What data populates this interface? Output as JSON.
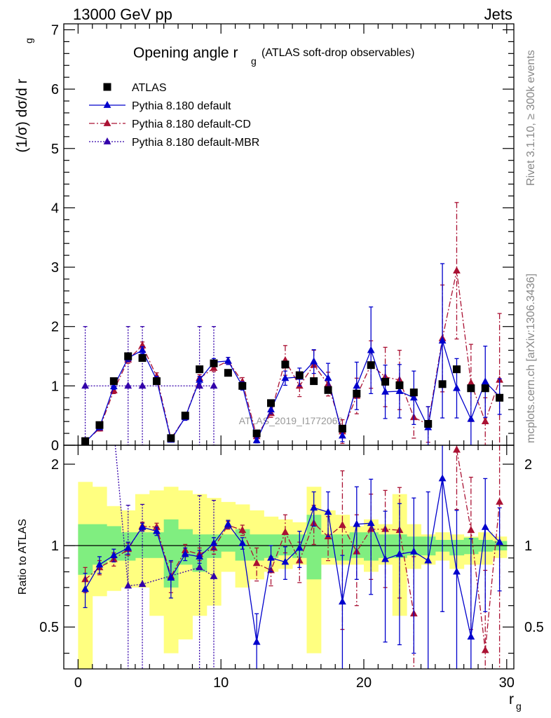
{
  "header": {
    "left": "13000 GeV pp",
    "right": "Jets",
    "side_top": "Rivet 3.1.10, ≥ 300k events",
    "side_bottom": "mcplots.cern.ch [arXiv:1306.3436]",
    "watermark": "ATLAS_2019_I1772062"
  },
  "chart_data": [
    {
      "type": "line",
      "title_main": "Opening angle r",
      "title_sub": "g",
      "title_extra": "(ATLAS soft-drop observables)",
      "ylabel": "(1/σ) dσ/d r",
      "ylabel_sub": "g",
      "xlim": [
        -1,
        30.5
      ],
      "ylim": [
        0,
        7.1
      ],
      "xticks": [
        0,
        10,
        20,
        30
      ],
      "yticks": [
        0,
        1,
        2,
        3,
        4,
        5,
        6,
        7
      ],
      "x": [
        0.5,
        1.5,
        2.5,
        3.5,
        4.5,
        5.5,
        6.5,
        7.5,
        8.5,
        9.5,
        10.5,
        11.5,
        12.5,
        13.5,
        14.5,
        15.5,
        16.5,
        17.5,
        18.5,
        19.5,
        20.5,
        21.5,
        22.5,
        23.5,
        24.5,
        25.5,
        26.5,
        27.5,
        28.5,
        29.5
      ],
      "legend_position": "top-left",
      "series": [
        {
          "name": "ATLAS",
          "color": "#000000",
          "marker": "square",
          "line": "none",
          "values": [
            0.07,
            0.34,
            1.08,
            1.5,
            1.47,
            1.08,
            0.12,
            0.5,
            1.28,
            1.38,
            1.22,
            1.0,
            0.2,
            0.71,
            1.36,
            1.18,
            1.08,
            0.93,
            0.28,
            0.87,
            1.35,
            1.07,
            1.01,
            0.89,
            0.36,
            1.03,
            1.28,
            0.96,
            0.96,
            0.8
          ],
          "err": [
            0.02,
            0.03,
            0.04,
            0.05,
            0.05,
            0.05,
            0.02,
            0.03,
            0.05,
            0.05,
            0.05,
            0.05,
            0.03,
            0.04,
            0.05,
            0.05,
            0.05,
            0.05,
            0.03,
            0.05,
            0.05,
            0.05,
            0.05,
            0.05,
            0.04,
            0.05,
            0.05,
            0.05,
            0.05,
            0.05
          ]
        },
        {
          "name": "Pythia 8.180 default",
          "color": "#0000cc",
          "marker": "triangle",
          "line": "solid",
          "values": [
            0.05,
            0.3,
            0.99,
            1.47,
            1.6,
            1.1,
            0.09,
            0.47,
            1.1,
            1.4,
            1.42,
            1.0,
            0.08,
            0.6,
            1.13,
            1.15,
            1.41,
            1.13,
            0.16,
            1.0,
            1.6,
            0.9,
            0.91,
            0.8,
            0.3,
            1.76,
            0.96,
            0.44,
            1.07,
            0.82
          ],
          "err": [
            0.03,
            0.04,
            0.05,
            0.06,
            0.06,
            0.06,
            0.03,
            0.05,
            0.06,
            0.06,
            0.06,
            0.07,
            0.04,
            0.07,
            0.12,
            0.15,
            0.2,
            0.25,
            0.1,
            0.4,
            0.73,
            0.45,
            0.45,
            0.45,
            0.35,
            1.3,
            0.5,
            0.5,
            0.6,
            0.3
          ]
        },
        {
          "name": "Pythia 8.180 default-CD",
          "color": "#aa1133",
          "marker": "triangle",
          "line": "dashdot",
          "values": [
            0.06,
            0.28,
            0.92,
            1.44,
            1.68,
            1.16,
            0.11,
            0.47,
            1.13,
            1.3,
            1.42,
            1.07,
            0.15,
            0.54,
            1.43,
            1.0,
            1.35,
            1.03,
            0.23,
            0.83,
            1.36,
            1.15,
            1.1,
            0.47,
            0.35,
            1.8,
            2.94,
            1.05,
            0.4,
            1.1
          ],
          "err": [
            0.03,
            0.04,
            0.05,
            0.06,
            0.06,
            0.06,
            0.03,
            0.05,
            0.06,
            0.06,
            0.06,
            0.07,
            0.04,
            0.07,
            0.25,
            0.18,
            0.25,
            0.2,
            0.2,
            0.3,
            0.4,
            0.5,
            0.5,
            0.35,
            0.3,
            0.9,
            1.15,
            0.65,
            0.4,
            1.12
          ]
        },
        {
          "name": "Pythia 8.180 default-MBR",
          "color": "#3300aa",
          "marker": "triangle",
          "line": "dotted",
          "values": [
            1.0,
            null,
            null,
            1.0,
            1.0,
            null,
            null,
            null,
            1.0,
            1.0,
            null,
            null,
            null,
            null,
            null,
            null,
            null,
            null,
            null,
            null,
            null,
            null,
            null,
            null,
            null,
            null,
            null,
            null,
            null,
            null
          ],
          "err": [
            1.0,
            null,
            null,
            1.0,
            1.0,
            null,
            null,
            null,
            1.0,
            1.0,
            null,
            null,
            null,
            null,
            null,
            null,
            null,
            null,
            null,
            null,
            null,
            null,
            null,
            null,
            null,
            null,
            null,
            null,
            null,
            null
          ]
        }
      ]
    },
    {
      "type": "line",
      "ylabel": "Ratio to ATLAS",
      "xlabel": "r",
      "xlabel_sub": "g",
      "xlim": [
        -1,
        30.5
      ],
      "ylim": [
        0.35,
        2.35
      ],
      "xticks": [
        0,
        10,
        20,
        30
      ],
      "yticks": [
        0.5,
        1,
        2
      ],
      "x": [
        0.5,
        1.5,
        2.5,
        3.5,
        4.5,
        5.5,
        6.5,
        7.5,
        8.5,
        9.5,
        10.5,
        11.5,
        12.5,
        13.5,
        14.5,
        15.5,
        16.5,
        17.5,
        18.5,
        19.5,
        20.5,
        21.5,
        22.5,
        23.5,
        24.5,
        25.5,
        26.5,
        27.5,
        28.5,
        29.5
      ],
      "bands": {
        "inner_color": "#80ee80",
        "outer_color": "#ffff80",
        "inner": [
          [
            0.78,
            1.2
          ],
          [
            0.85,
            1.2
          ],
          [
            0.88,
            1.18
          ],
          [
            0.88,
            1.12
          ],
          [
            0.9,
            1.12
          ],
          [
            0.9,
            1.12
          ],
          [
            0.7,
            1.25
          ],
          [
            0.85,
            1.15
          ],
          [
            0.8,
            1.1
          ],
          [
            0.9,
            1.1
          ],
          [
            0.95,
            1.1
          ],
          [
            0.88,
            1.15
          ],
          [
            0.88,
            1.1
          ],
          [
            0.9,
            1.1
          ],
          [
            0.92,
            1.1
          ],
          [
            0.9,
            1.1
          ],
          [
            0.75,
            1.3
          ],
          [
            0.9,
            1.1
          ],
          [
            0.88,
            1.1
          ],
          [
            0.9,
            1.12
          ],
          [
            0.88,
            1.12
          ],
          [
            0.9,
            1.1
          ],
          [
            0.9,
            1.1
          ],
          [
            0.92,
            1.08
          ],
          [
            0.92,
            1.08
          ],
          [
            0.95,
            1.05
          ],
          [
            0.92,
            1.05
          ],
          [
            0.93,
            1.07
          ],
          [
            0.95,
            1.05
          ],
          [
            0.96,
            1.04
          ]
        ],
        "outer": [
          [
            0.35,
            1.72
          ],
          [
            0.65,
            1.65
          ],
          [
            0.68,
            1.4
          ],
          [
            0.7,
            1.35
          ],
          [
            0.7,
            1.55
          ],
          [
            0.55,
            1.6
          ],
          [
            0.4,
            1.65
          ],
          [
            0.45,
            1.6
          ],
          [
            0.55,
            1.55
          ],
          [
            0.6,
            1.5
          ],
          [
            0.8,
            1.45
          ],
          [
            0.7,
            1.42
          ],
          [
            0.75,
            1.35
          ],
          [
            0.8,
            1.28
          ],
          [
            0.82,
            1.25
          ],
          [
            0.85,
            1.22
          ],
          [
            0.4,
            1.65
          ],
          [
            0.85,
            1.35
          ],
          [
            0.85,
            1.3
          ],
          [
            0.85,
            1.18
          ],
          [
            0.8,
            1.25
          ],
          [
            0.85,
            1.2
          ],
          [
            0.55,
            1.55
          ],
          [
            0.82,
            1.2
          ],
          [
            0.85,
            1.1
          ],
          [
            0.88,
            1.12
          ],
          [
            0.82,
            1.1
          ],
          [
            0.85,
            1.08
          ],
          [
            0.85,
            1.12
          ],
          [
            0.9,
            1.08
          ]
        ]
      },
      "series": [
        {
          "name": "Pythia 8.180 default",
          "color": "#0000cc",
          "marker": "triangle",
          "line": "solid",
          "values": [
            0.69,
            0.85,
            0.92,
            0.98,
            1.17,
            1.13,
            0.76,
            0.93,
            0.91,
            1.02,
            1.2,
            1.02,
            0.44,
            0.9,
            0.87,
            0.98,
            1.38,
            1.33,
            0.62,
            1.2,
            1.21,
            0.89,
            0.93,
            0.95,
            0.88,
            1.77,
            0.8,
            0.46,
            1.17,
            1.03
          ],
          "err": [
            0.1,
            0.06,
            0.05,
            0.05,
            0.04,
            0.04,
            0.12,
            0.05,
            0.05,
            0.05,
            0.04,
            0.05,
            0.12,
            0.1,
            0.12,
            0.15,
            0.2,
            0.25,
            0.3,
            0.45,
            0.55,
            0.45,
            0.5,
            0.55,
            0.7,
            1.2,
            0.55,
            0.6,
            0.6,
            0.35
          ]
        },
        {
          "name": "Pythia 8.180 default-CD",
          "color": "#aa1133",
          "marker": "triangle",
          "line": "dashdot",
          "values": [
            0.75,
            0.83,
            0.89,
            0.97,
            1.18,
            1.17,
            0.77,
            0.96,
            0.93,
            0.98,
            1.19,
            1.14,
            0.86,
            0.81,
            1.12,
            0.88,
            1.21,
            1.08,
            1.19,
            0.95,
            1.15,
            1.15,
            1.14,
            0.56,
            null,
            null,
            2.26,
            1.14,
            0.41,
            1.45
          ],
          "err": [
            0.08,
            0.05,
            0.05,
            0.05,
            0.04,
            0.04,
            0.1,
            0.05,
            0.05,
            0.05,
            0.04,
            0.05,
            0.12,
            0.1,
            0.18,
            0.15,
            0.2,
            0.2,
            0.7,
            0.35,
            0.4,
            0.45,
            0.5,
            0.35,
            null,
            null,
            0.9,
            0.65,
            0.4,
            1.4
          ]
        },
        {
          "name": "Pythia 8.180 default-MBR",
          "color": "#3300aa",
          "marker": "triangle",
          "line": "dotted",
          "values": [
            null,
            null,
            null,
            0.71,
            0.72,
            null,
            null,
            null,
            0.83,
            0.77,
            null,
            null,
            null,
            null,
            null,
            null,
            null,
            null,
            null,
            null,
            null,
            null,
            null,
            null,
            null,
            null,
            null,
            null,
            null,
            null
          ],
          "err": [
            null,
            null,
            null,
            0.7,
            0.7,
            null,
            null,
            null,
            0.7,
            0.7,
            null,
            null,
            null,
            null,
            null,
            null,
            null,
            null,
            null,
            null,
            null,
            null,
            null,
            null,
            null,
            null,
            null,
            null,
            null,
            null
          ]
        }
      ]
    }
  ]
}
